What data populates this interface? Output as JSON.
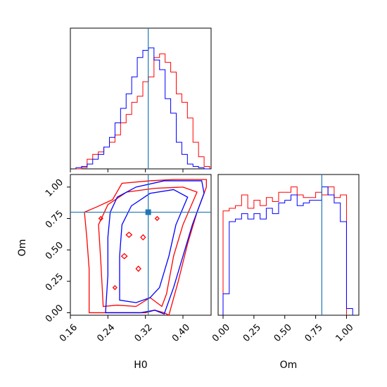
{
  "chart_data": [
    {
      "type": "histogram",
      "panel": "H0 marginal",
      "x_range": [
        0.16,
        0.46
      ],
      "truth_x": 0.326,
      "bin_edges_hint": "H0 from 0.16 to 0.46 in 24 bins",
      "series": [
        {
          "color": "#ff0000",
          "values": [
            0,
            0.01,
            0.08,
            0.12,
            0.14,
            0.18,
            0.22,
            0.28,
            0.38,
            0.45,
            0.55,
            0.6,
            0.72,
            0.76,
            0.92,
            0.95,
            0.88,
            0.8,
            0.62,
            0.55,
            0.42,
            0.22,
            0.1,
            0.02
          ]
        },
        {
          "color": "#0000ff",
          "values": [
            0.01,
            0.02,
            0.04,
            0.08,
            0.12,
            0.18,
            0.26,
            0.38,
            0.5,
            0.62,
            0.76,
            0.92,
            0.98,
            1.0,
            0.9,
            0.82,
            0.58,
            0.46,
            0.22,
            0.12,
            0.04,
            0.02,
            0.01,
            0
          ]
        }
      ]
    },
    {
      "type": "histogram",
      "panel": "Om marginal",
      "x_range": [
        -0.04,
        1.1
      ],
      "x_ticks": [
        "0.00",
        "0.25",
        "0.50",
        "0.75",
        "1.00"
      ],
      "xlabel": "Om",
      "truth_x": 0.8,
      "series": [
        {
          "color": "#ff0000",
          "values": [
            0.78,
            0.8,
            0.82,
            0.9,
            0.8,
            0.86,
            0.82,
            0.88,
            0.85,
            0.92,
            0.92,
            0.96,
            0.9,
            0.88,
            0.88,
            0.92,
            0.9,
            0.96,
            0.88,
            0.9
          ]
        },
        {
          "color": "#0000ff",
          "values": [
            0.16,
            0.7,
            0.72,
            0.76,
            0.72,
            0.76,
            0.72,
            0.8,
            0.76,
            0.84,
            0.86,
            0.9,
            0.82,
            0.84,
            0.86,
            0.86,
            0.96,
            0.9,
            0.84,
            0.7,
            0.05
          ]
        }
      ]
    },
    {
      "type": "contour",
      "panel": "H0 vs Om",
      "x_range": [
        0.16,
        0.46
      ],
      "y_range": [
        -0.02,
        1.1
      ],
      "x_ticks": [
        "0.16",
        "0.24",
        "0.32",
        "0.40"
      ],
      "y_ticks": [
        "0.00",
        "0.25",
        "0.50",
        "0.75",
        "1.00"
      ],
      "xlabel": "H0",
      "ylabel": "Om",
      "truth": {
        "x": 0.326,
        "y": 0.8
      },
      "series_colors": [
        "#ff0000",
        "#0000ff"
      ]
    }
  ],
  "colors": {
    "red_series": "#ff0000",
    "blue_series": "#0000ff",
    "truth_line": "#1f77b4"
  }
}
